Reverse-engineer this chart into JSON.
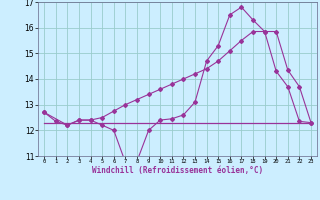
{
  "xlabel": "Windchill (Refroidissement éolien,°C)",
  "background_color": "#cceeff",
  "grid_color": "#99cccc",
  "line_color": "#993399",
  "xlim": [
    -0.5,
    23.5
  ],
  "ylim": [
    11,
    17
  ],
  "yticks": [
    11,
    12,
    13,
    14,
    15,
    16,
    17
  ],
  "xticks": [
    0,
    1,
    2,
    3,
    4,
    5,
    6,
    7,
    8,
    9,
    10,
    11,
    12,
    13,
    14,
    15,
    16,
    17,
    18,
    19,
    20,
    21,
    22,
    23
  ],
  "line1_x": [
    0,
    1,
    2,
    3,
    4,
    5,
    6,
    7,
    8,
    9,
    10,
    11,
    12,
    13,
    14,
    15,
    16,
    17,
    18,
    19,
    20,
    21,
    22,
    23
  ],
  "line1_y": [
    12.7,
    12.35,
    12.2,
    12.4,
    12.4,
    12.2,
    12.0,
    10.75,
    10.8,
    12.0,
    12.4,
    12.45,
    12.6,
    13.1,
    14.7,
    15.3,
    16.5,
    16.8,
    16.3,
    15.85,
    14.3,
    13.7,
    12.35,
    12.3
  ],
  "line2_x": [
    0,
    2,
    3,
    4,
    5,
    6,
    7,
    8,
    9,
    10,
    11,
    12,
    13,
    14,
    15,
    16,
    17,
    18,
    19,
    20,
    21,
    22,
    23
  ],
  "line2_y": [
    12.7,
    12.2,
    12.4,
    12.4,
    12.5,
    12.75,
    13.0,
    13.2,
    13.4,
    13.6,
    13.8,
    14.0,
    14.2,
    14.4,
    14.7,
    15.1,
    15.5,
    15.85,
    15.85,
    15.85,
    14.35,
    13.7,
    12.3
  ],
  "line3_x": [
    0,
    23
  ],
  "line3_y": [
    12.3,
    12.3
  ]
}
